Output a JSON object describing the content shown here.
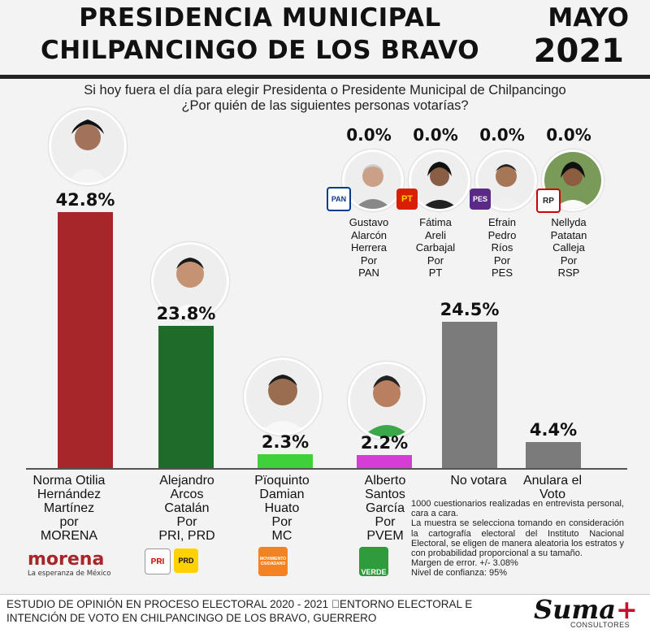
{
  "header": {
    "title_line1": "PRESIDENCIA MUNICIPAL",
    "title_line2": "CHILPANCINGO DE LOS BRAVO",
    "month": "MAYO",
    "year": "2021"
  },
  "question": {
    "line1": "Si hoy fuera el día para elegir Presidenta o Presidente Municipal de Chilpancingo",
    "line2": "¿Por quién de las siguientes personas votarías?"
  },
  "chart_data": {
    "type": "bar",
    "unit": "%",
    "ylim": [
      0,
      45
    ],
    "categories": [
      "Norma Otilia Hernández Martínez por MORENA",
      "Alejandro Arcos Catalán Por PRI, PRD",
      "Pïoquinto Damian Huato Por MC",
      "Alberto Santos García Por PVEM",
      "No votara",
      "Anulara el Voto"
    ],
    "values": [
      42.8,
      23.8,
      2.3,
      2.2,
      24.5,
      4.4
    ],
    "value_labels": [
      "42.8%",
      "23.8%",
      "2.3%",
      "2.2%",
      "24.5%",
      "4.4%"
    ],
    "colors": [
      "#a6262a",
      "#1f6b2a",
      "#3ed13a",
      "#d63dd6",
      "#7b7b7b",
      "#7b7b7b"
    ],
    "extra_candidates": [
      {
        "label_lines": [
          "Gustavo",
          "Alarcón",
          "Herrera",
          "Por",
          "PAN"
        ],
        "value": 0.0,
        "value_label": "0.0%",
        "party": "PAN"
      },
      {
        "label_lines": [
          "Fátima",
          "Areli",
          "Carbajal",
          "Por",
          "PT"
        ],
        "value": 0.0,
        "value_label": "0.0%",
        "party": "PT"
      },
      {
        "label_lines": [
          "Efrain",
          "Pedro",
          "Ríos",
          "Por",
          "PES"
        ],
        "value": 0.0,
        "value_label": "0.0%",
        "party": "PES"
      },
      {
        "label_lines": [
          "Nellyda",
          "Patatan",
          "Calleja",
          "Por",
          "RSP"
        ],
        "value": 0.0,
        "value_label": "0.0%",
        "party": "RSP"
      }
    ]
  },
  "labels": {
    "c1": [
      "Norma Otilia",
      "Hernández",
      "Martínez",
      "por",
      "MORENA"
    ],
    "c2": [
      "Alejandro",
      "Arcos",
      "Catalán",
      "Por",
      "PRI, PRD"
    ],
    "c3": [
      "Pïoquinto",
      "Damian",
      "Huato",
      "Por",
      "MC"
    ],
    "c4": [
      "Alberto",
      "Santos",
      "García",
      "Por",
      "PVEM"
    ],
    "c5": [
      "No votara"
    ],
    "c6": [
      "Anulara el",
      "Voto"
    ]
  },
  "logos": {
    "morena": "morena",
    "morena_tagline": "La esperanza de México",
    "pri": "PRI",
    "prd": "PRD",
    "mc": "MOVIMIENTO CIUDADANO",
    "verde": "VERDE",
    "pan": "PAN",
    "pt": "PT",
    "pes": "PES",
    "rsp": "RP"
  },
  "methodology": [
    "1000 cuestionarios realizadas en entrevista personal, cara a cara.",
    "La muestra se selecciona tomando en consideración la cartografía electoral del Instituto Nacional Electoral, se eligen de manera aleatoria los estratos y con probabilidad proporcional a su tamaño.",
    "Margen de error. +/- 3.08%",
    "Nivel de confianza: 95%"
  ],
  "footer": {
    "line1": "ESTUDIO DE OPINIÓN EN PROCESO ELECTORAL 2020 - 2021 \u0000ENTORNO ELECTORAL E",
    "line2": "INTENCIÓN DE VOTO EN CHILPANCINGO DE LOS BRAVO, GUERRERO",
    "brand": "Suma",
    "brand_plus": "+",
    "brand_sub": "CONSULTORES"
  },
  "icons": [
    "candidate-photo-icon"
  ]
}
